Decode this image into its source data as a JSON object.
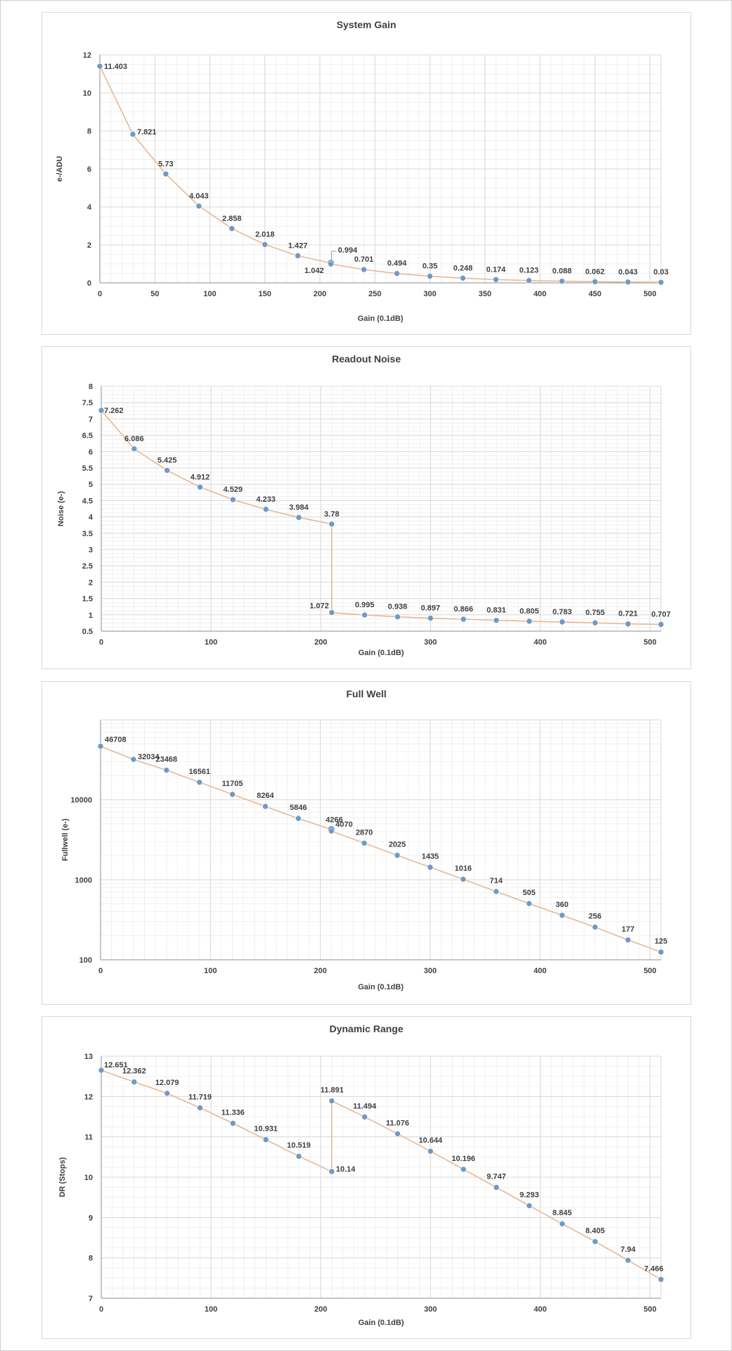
{
  "chart_data": [
    {
      "type": "line",
      "title": "System Gain",
      "xlabel": "Gain (0.1dB)",
      "ylabel": "e-/ADU",
      "xlim": [
        0,
        510
      ],
      "ylim": [
        0,
        12
      ],
      "xticks": [
        0,
        50,
        100,
        150,
        200,
        250,
        300,
        350,
        400,
        450,
        500
      ],
      "yticks": [
        0,
        2,
        4,
        6,
        8,
        10,
        12
      ],
      "grid": true,
      "line_color": "#e8b894",
      "marker_color": "#6d9ac6",
      "series": [
        {
          "x": [
            0,
            30,
            60,
            90,
            120,
            150,
            180,
            210,
            210,
            240,
            270,
            300,
            330,
            360,
            390,
            420,
            450,
            480,
            510
          ],
          "y": [
            11.403,
            7.821,
            5.73,
            4.043,
            2.858,
            2.018,
            1.427,
            1.042,
            0.994,
            0.701,
            0.494,
            0.35,
            0.248,
            0.174,
            0.123,
            0.088,
            0.062,
            0.043,
            0.03
          ],
          "labels": [
            "11.403",
            "7.821",
            "5.73",
            "4.043",
            "2.858",
            "2.018",
            "1.427",
            "1.042",
            "0.994",
            "0.701",
            "0.494",
            "0.35",
            "0.248",
            "0.174",
            "0.123",
            "0.088",
            "0.062",
            "0.043",
            "0.03"
          ]
        }
      ]
    },
    {
      "type": "line",
      "title": "Readout Noise",
      "xlabel": "Gain (0.1dB)",
      "ylabel": "Noise (e-)",
      "xlim": [
        0,
        510
      ],
      "ylim": [
        0.5,
        8
      ],
      "xticks": [
        0,
        100,
        200,
        300,
        400,
        500
      ],
      "yticks": [
        0.5,
        1,
        1.5,
        2,
        2.5,
        3,
        3.5,
        4,
        4.5,
        5,
        5.5,
        6,
        6.5,
        7,
        7.5,
        8
      ],
      "grid": true,
      "line_color": "#e8b894",
      "marker_color": "#6d9ac6",
      "series": [
        {
          "x": [
            0,
            30,
            60,
            90,
            120,
            150,
            180,
            210,
            210,
            240,
            270,
            300,
            330,
            360,
            390,
            420,
            450,
            480,
            510
          ],
          "y": [
            7.262,
            6.086,
            5.425,
            4.912,
            4.529,
            4.233,
            3.984,
            3.78,
            1.072,
            0.995,
            0.938,
            0.897,
            0.866,
            0.831,
            0.805,
            0.783,
            0.755,
            0.721,
            0.707
          ],
          "labels": [
            "7.262",
            "6.086",
            "5.425",
            "4.912",
            "4.529",
            "4.233",
            "3.984",
            "3.78",
            "1.072",
            "0.995",
            "0.938",
            "0.897",
            "0.866",
            "0.831",
            "0.805",
            "0.783",
            "0.755",
            "0.721",
            "0.707"
          ]
        }
      ]
    },
    {
      "type": "line",
      "title": "Full Well",
      "xlabel": "Gain (0.1dB)",
      "ylabel": "Fullwell (e-)",
      "xlim": [
        0,
        510
      ],
      "ylim": [
        100,
        100000
      ],
      "yscale": "log",
      "xticks": [
        0,
        100,
        200,
        300,
        400,
        500
      ],
      "yticks": [
        100,
        1000,
        10000
      ],
      "grid": true,
      "line_color": "#e8b894",
      "marker_color": "#6d9ac6",
      "series": [
        {
          "x": [
            0,
            30,
            60,
            90,
            120,
            150,
            180,
            210,
            210,
            240,
            270,
            300,
            330,
            360,
            390,
            420,
            450,
            480,
            510
          ],
          "y": [
            46708,
            32034,
            23468,
            16561,
            11705,
            8264,
            5846,
            4266,
            4070,
            2870,
            2025,
            1435,
            1016,
            714,
            505,
            360,
            256,
            177,
            125
          ],
          "labels": [
            "46708",
            "32034",
            "23468",
            "16561",
            "11705",
            "8264",
            "5846",
            "4266",
            "4070",
            "2870",
            "2025",
            "1435",
            "1016",
            "714",
            "505",
            "360",
            "256",
            "177",
            "125"
          ]
        }
      ]
    },
    {
      "type": "line",
      "title": "Dynamic Range",
      "xlabel": "Gain (0.1dB)",
      "ylabel": "DR (Stops)",
      "xlim": [
        0,
        510
      ],
      "ylim": [
        7,
        13
      ],
      "xticks": [
        0,
        100,
        200,
        300,
        400,
        500
      ],
      "yticks": [
        7,
        8,
        9,
        10,
        11,
        12,
        13
      ],
      "grid": true,
      "line_color": "#e8b894",
      "marker_color": "#6d9ac6",
      "series": [
        {
          "x": [
            0,
            30,
            60,
            90,
            120,
            150,
            180,
            210,
            210,
            240,
            270,
            300,
            330,
            360,
            390,
            420,
            450,
            480,
            510
          ],
          "y": [
            12.651,
            12.362,
            12.079,
            11.719,
            11.336,
            10.931,
            10.519,
            10.14,
            11.891,
            11.494,
            11.076,
            10.644,
            10.196,
            9.747,
            9.293,
            8.845,
            8.405,
            7.94,
            7.466
          ],
          "labels": [
            "12.651",
            "12.362",
            "12.079",
            "11.719",
            "11.336",
            "10.931",
            "10.519",
            "10.14",
            "11.891",
            "11.494",
            "11.076",
            "10.644",
            "10.196",
            "9.747",
            "9.293",
            "8.845",
            "8.405",
            "7.94",
            "7.466"
          ]
        }
      ]
    }
  ]
}
